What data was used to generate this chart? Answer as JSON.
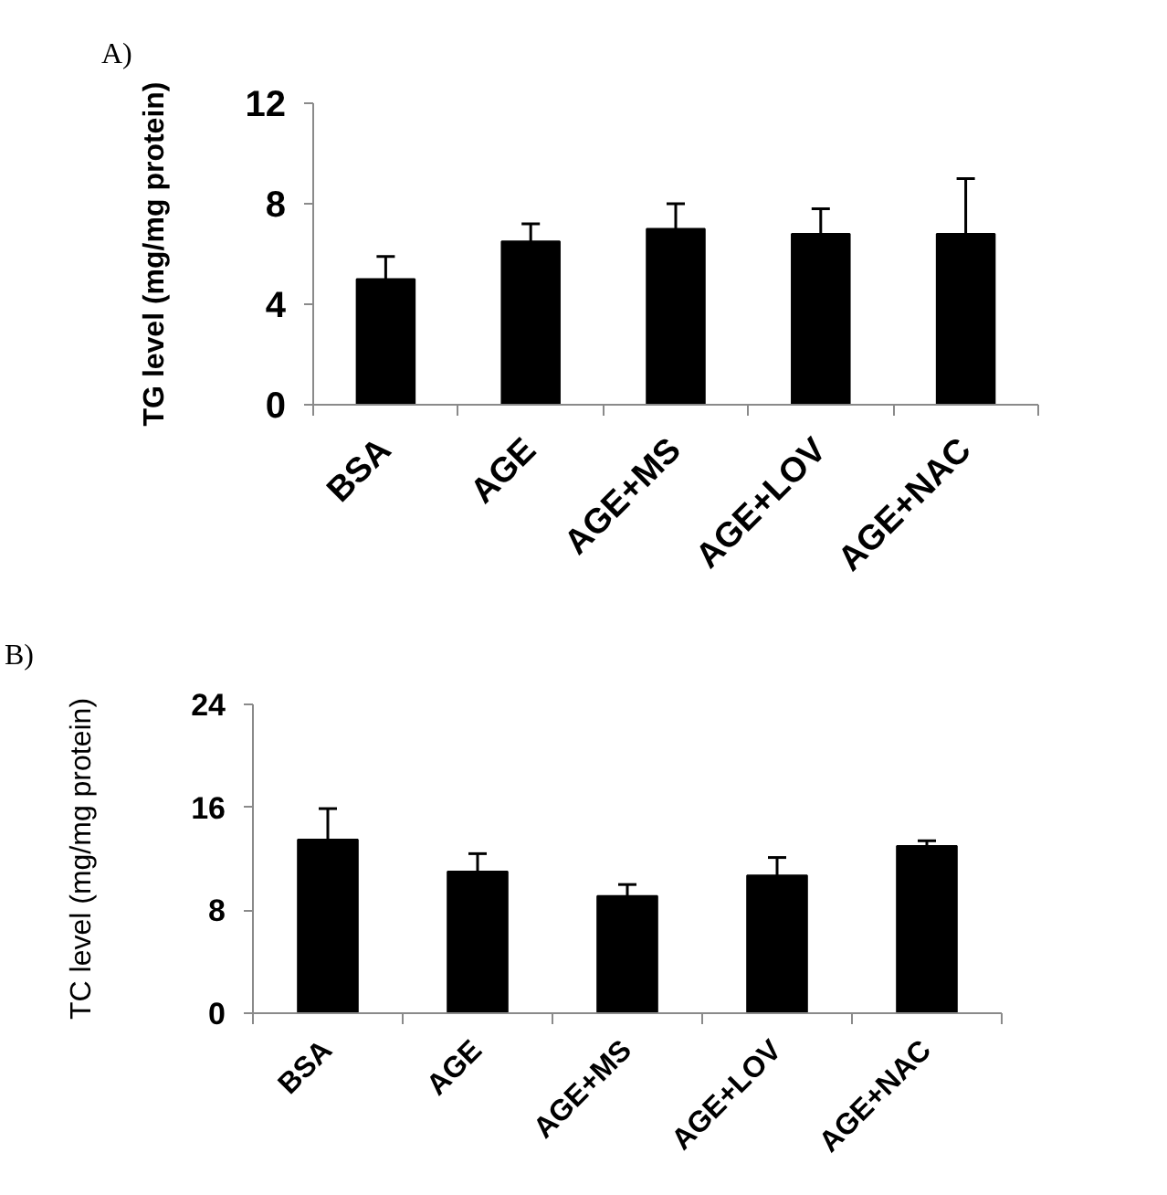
{
  "chart_data": [
    {
      "type": "bar",
      "title": "A)",
      "ylabel": "TG level (mg/mg protein)",
      "categories": [
        "BSA",
        "AGE",
        "AGE+MS",
        "AGE+LOV",
        "AGE+NAC"
      ],
      "values": [
        5.0,
        6.5,
        7.0,
        6.8,
        6.8
      ],
      "errors": [
        [
          5.0,
          5.9
        ],
        [
          6.5,
          7.2
        ],
        [
          7.0,
          8.0
        ],
        [
          6.8,
          7.8
        ],
        [
          6.8,
          9.0
        ]
      ],
      "color": "#000000",
      "ylim": [
        0,
        12
      ],
      "yticks": [
        0,
        4,
        8,
        12
      ],
      "grid": false
    },
    {
      "type": "bar",
      "title": "B)",
      "ylabel": "TC level (mg/mg protein)",
      "categories": [
        "BSA",
        "AGE",
        "AGE+MS",
        "AGE+LOV",
        "AGE+NAC"
      ],
      "values": [
        13.5,
        11.0,
        9.1,
        10.7,
        13.0
      ],
      "errors": [
        [
          13.5,
          15.9
        ],
        [
          11.0,
          12.4
        ],
        [
          9.1,
          10.0
        ],
        [
          10.7,
          12.1
        ],
        [
          13.0,
          13.4
        ]
      ],
      "color": "#000000",
      "ylim": [
        0,
        24
      ],
      "yticks": [
        0,
        8,
        16,
        24
      ],
      "grid": false
    }
  ]
}
